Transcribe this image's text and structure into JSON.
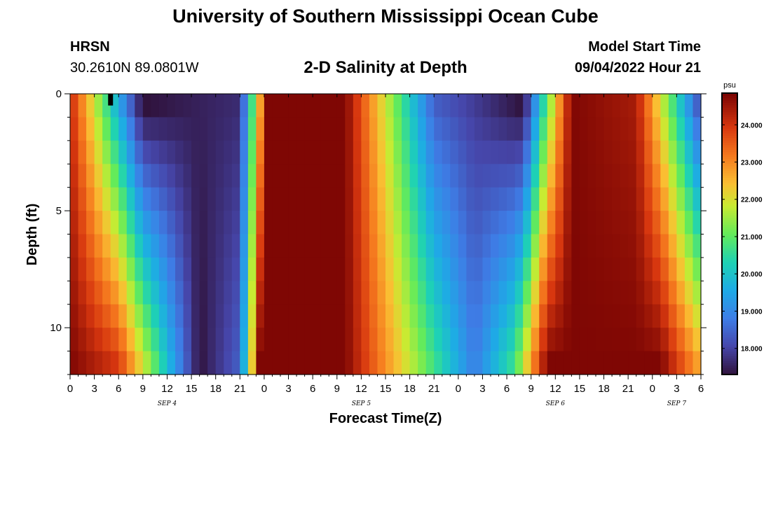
{
  "header": {
    "title": "University of Southern Mississippi Ocean Cube",
    "station": "HRSN",
    "coords": "30.2610N  89.0801W",
    "chart_title": "2-D Salinity at Depth",
    "model_label": "Model Start Time",
    "model_start": "09/04/2022 Hour 21"
  },
  "footer": {
    "title": "University of Southern Mississippi Ocean Cube"
  },
  "chart_data": {
    "type": "heatmap",
    "title": "2-D Salinity at Depth",
    "xlabel": "Forecast Time(Z)",
    "ylabel": "Depth (ft)",
    "x_hours_range": [
      0,
      78
    ],
    "x_ticks": [
      "0",
      "3",
      "6",
      "9",
      "12",
      "15",
      "18",
      "21",
      "0",
      "3",
      "6",
      "9",
      "12",
      "15",
      "18",
      "21",
      "0",
      "3",
      "6",
      "9",
      "12",
      "15",
      "18",
      "21",
      "0",
      "3",
      "6"
    ],
    "date_labels": [
      {
        "label": "SEP 4",
        "hour": 12
      },
      {
        "label": "SEP 5",
        "hour": 36
      },
      {
        "label": "SEP 6",
        "hour": 60
      },
      {
        "label": "SEP 7",
        "hour": 75
      }
    ],
    "y_range": [
      0,
      12
    ],
    "y_ticks": [
      0,
      5,
      10
    ],
    "depth_levels": 12,
    "colorbar": {
      "unit": "psu",
      "range": [
        17.3,
        24.85
      ],
      "ticks": [
        "18.000",
        "19.000",
        "20.000",
        "21.000",
        "22.000",
        "23.000",
        "24.000"
      ],
      "tick_values": [
        18,
        19,
        20,
        21,
        22,
        23,
        24
      ]
    },
    "surface_salinity_low_psu": 17.3,
    "bottom_salinity_high_psu": 24.8,
    "missing_cell": {
      "hour": 4.7,
      "depth": 0
    }
  }
}
